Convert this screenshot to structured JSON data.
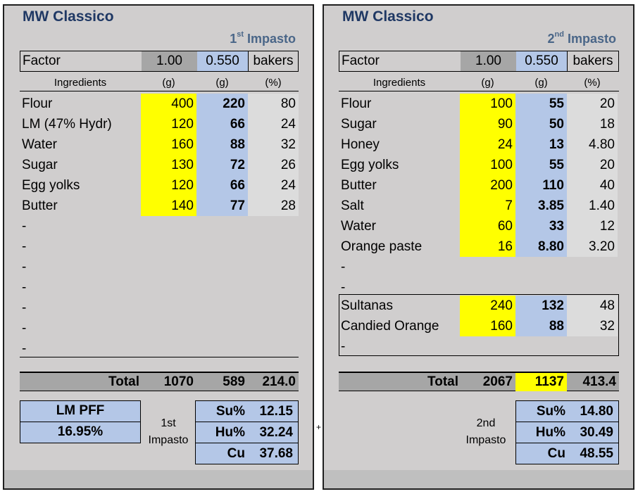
{
  "colors": {
    "panel_bg": "#d0cece",
    "yellow": "#ffff00",
    "blue": "#b4c7e7",
    "title": "#1f3864"
  },
  "first": {
    "title": "MW Classico",
    "subtitle_num": "1",
    "subtitle_sup": "st",
    "subtitle_text": " Impasto",
    "factor_label": "Factor",
    "factor_value": "1.00",
    "factor_ratio": "0.550",
    "factor_unit": "bakers",
    "headers": {
      "ingredients": "Ingredients",
      "g1": "(g)",
      "g2": "(g)",
      "pct": "(%)"
    },
    "rows": [
      {
        "name": "Flour",
        "g": "400",
        "scaled": "220",
        "pct": "80"
      },
      {
        "name": "LM (47% Hydr)",
        "g": "120",
        "scaled": "66",
        "pct": "24"
      },
      {
        "name": "Water",
        "g": "160",
        "scaled": "88",
        "pct": "32"
      },
      {
        "name": "Sugar",
        "g": "130",
        "scaled": "72",
        "pct": "26"
      },
      {
        "name": "Egg yolks",
        "g": "120",
        "scaled": "66",
        "pct": "24"
      },
      {
        "name": "Butter",
        "g": "140",
        "scaled": "77",
        "pct": "28"
      }
    ],
    "blank_rows": [
      "-",
      "-",
      "-",
      "-",
      "-",
      "-",
      "-"
    ],
    "total": {
      "label": "Total",
      "g": "1070",
      "scaled": "589",
      "pct": "214.0"
    },
    "lm_label": "LM PFF",
    "lm_value": "16.95%",
    "impasto_label_1": "1st",
    "impasto_label_2": "Impasto",
    "stats": [
      {
        "k": "Su%",
        "v": "12.15"
      },
      {
        "k": "Hu%",
        "v": "32.24"
      },
      {
        "k": "Cu",
        "v": "37.68"
      }
    ]
  },
  "separator": "+",
  "second": {
    "title": "MW Classico",
    "subtitle_num": "2",
    "subtitle_sup": "nd",
    "subtitle_text": " Impasto",
    "factor_label": "Factor",
    "factor_value": "1.00",
    "factor_ratio": "0.550",
    "factor_unit": "bakers",
    "headers": {
      "ingredients": "Ingredients",
      "g1": "(g)",
      "g2": "(g)",
      "pct": "(%)"
    },
    "rows": [
      {
        "name": "Flour",
        "g": "100",
        "scaled": "55",
        "pct": "20"
      },
      {
        "name": "Sugar",
        "g": "90",
        "scaled": "50",
        "pct": "18"
      },
      {
        "name": "Honey",
        "g": "24",
        "scaled": "13",
        "pct": "4.80"
      },
      {
        "name": "Egg yolks",
        "g": "100",
        "scaled": "55",
        "pct": "20"
      },
      {
        "name": "Butter",
        "g": "200",
        "scaled": "110",
        "pct": "40"
      },
      {
        "name": "Salt",
        "g": "7",
        "scaled": "3.85",
        "pct": "1.40"
      },
      {
        "name": "Water",
        "g": "60",
        "scaled": "33",
        "pct": "12"
      },
      {
        "name": "Orange paste",
        "g": "16",
        "scaled": "8.80",
        "pct": "3.20"
      }
    ],
    "blank_rows": [
      "-",
      "-"
    ],
    "inclusions": [
      {
        "name": "Sultanas",
        "g": "240",
        "scaled": "132",
        "pct": "48"
      },
      {
        "name": "Candied Orange",
        "g": "160",
        "scaled": "88",
        "pct": "32"
      }
    ],
    "inclusion_blank": "-",
    "total": {
      "label": "Total",
      "g": "2067",
      "scaled": "1137",
      "pct": "413.4"
    },
    "impasto_label_1": "2nd",
    "impasto_label_2": "Impasto",
    "stats": [
      {
        "k": "Su%",
        "v": "14.80"
      },
      {
        "k": "Hu%",
        "v": "30.49"
      },
      {
        "k": "Cu",
        "v": "48.55"
      }
    ]
  }
}
